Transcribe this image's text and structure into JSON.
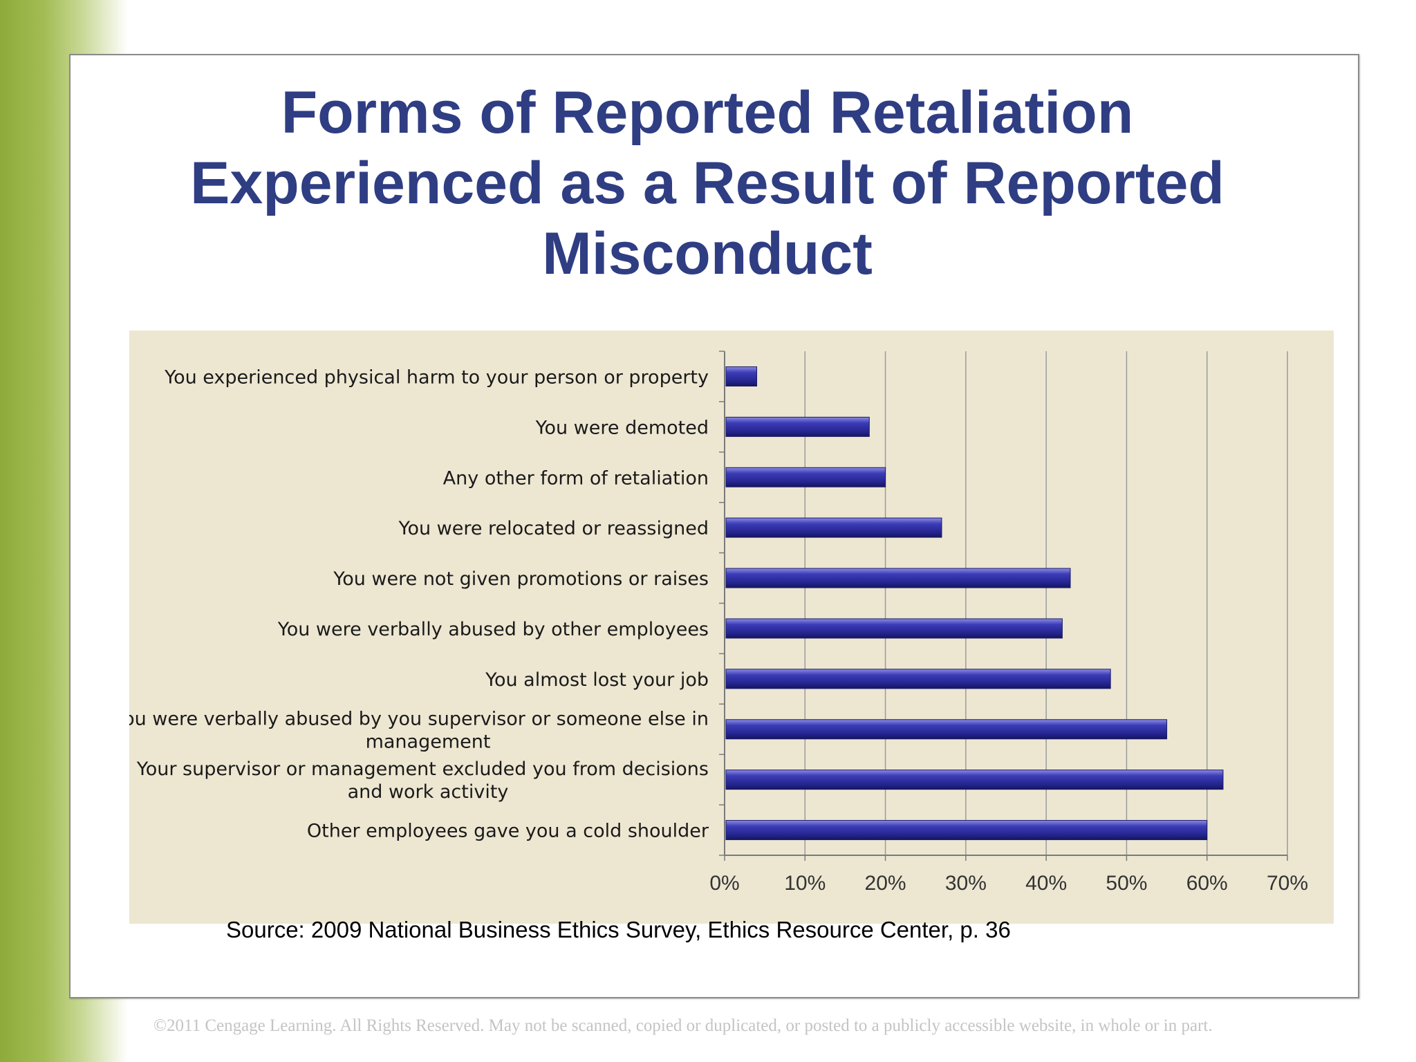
{
  "slide": {
    "title_lines": [
      "Forms of Reported Retaliation",
      "Experienced as a Result of Reported",
      "Misconduct"
    ],
    "source": "Source: 2009 National Business Ethics Survey, Ethics Resource Center, p. 36",
    "copyright": "©2011 Cengage Learning. All Rights Reserved. May not be scanned, copied or duplicated, or posted to a publicly accessible website, in whole or in part."
  },
  "colors": {
    "title": "#2f3d83",
    "bar": "#2b2b9a",
    "chart_background": "#ede7d2",
    "gridline": "#9a9a9a"
  },
  "chart_data": {
    "type": "bar",
    "orientation": "horizontal",
    "categories": [
      [
        "You experienced physical harm to your person or property"
      ],
      [
        "You were demoted"
      ],
      [
        "Any other form of retaliation"
      ],
      [
        "You were relocated or reassigned"
      ],
      [
        "You were not given promotions or raises"
      ],
      [
        "You were verbally abused by other employees"
      ],
      [
        "You almost lost your job"
      ],
      [
        "You were verbally abused by you supervisor or someone else in",
        "management"
      ],
      [
        "Your supervisor or management excluded you from decisions",
        "and work activity"
      ],
      [
        "Other employees gave you a cold shoulder"
      ]
    ],
    "values": [
      4,
      18,
      20,
      27,
      43,
      42,
      48,
      55,
      62,
      60
    ],
    "xlim": [
      0,
      70
    ],
    "x_ticks": [
      0,
      10,
      20,
      30,
      40,
      50,
      60,
      70
    ],
    "x_tick_labels": [
      "0%",
      "10%",
      "20%",
      "30%",
      "40%",
      "50%",
      "60%",
      "70%"
    ],
    "grid": true,
    "legend": "none"
  }
}
